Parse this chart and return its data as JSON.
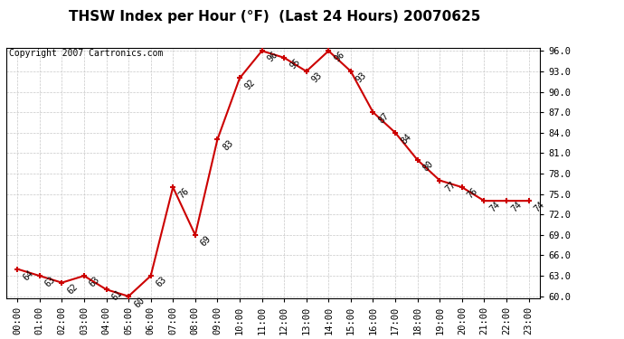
{
  "title": "THSW Index per Hour (°F)  (Last 24 Hours) 20070625",
  "copyright": "Copyright 2007 Cartronics.com",
  "hours": [
    "00:00",
    "01:00",
    "02:00",
    "03:00",
    "04:00",
    "05:00",
    "06:00",
    "07:00",
    "08:00",
    "09:00",
    "10:00",
    "11:00",
    "12:00",
    "13:00",
    "14:00",
    "15:00",
    "16:00",
    "17:00",
    "18:00",
    "19:00",
    "20:00",
    "21:00",
    "22:00",
    "23:00"
  ],
  "values": [
    64,
    63,
    62,
    63,
    61,
    60,
    63,
    76,
    69,
    83,
    92,
    96,
    95,
    93,
    96,
    93,
    87,
    84,
    80,
    77,
    76,
    74,
    74,
    74
  ],
  "ylim_min": 60.0,
  "ylim_max": 96.0,
  "yticks": [
    60.0,
    63.0,
    66.0,
    69.0,
    72.0,
    75.0,
    78.0,
    81.0,
    84.0,
    87.0,
    90.0,
    93.0,
    96.0
  ],
  "line_color": "#cc0000",
  "marker_color": "#cc0000",
  "grid_color": "#c8c8c8",
  "bg_color": "#ffffff",
  "title_fontsize": 11,
  "copyright_fontsize": 7,
  "label_fontsize": 7,
  "tick_fontsize": 7.5
}
